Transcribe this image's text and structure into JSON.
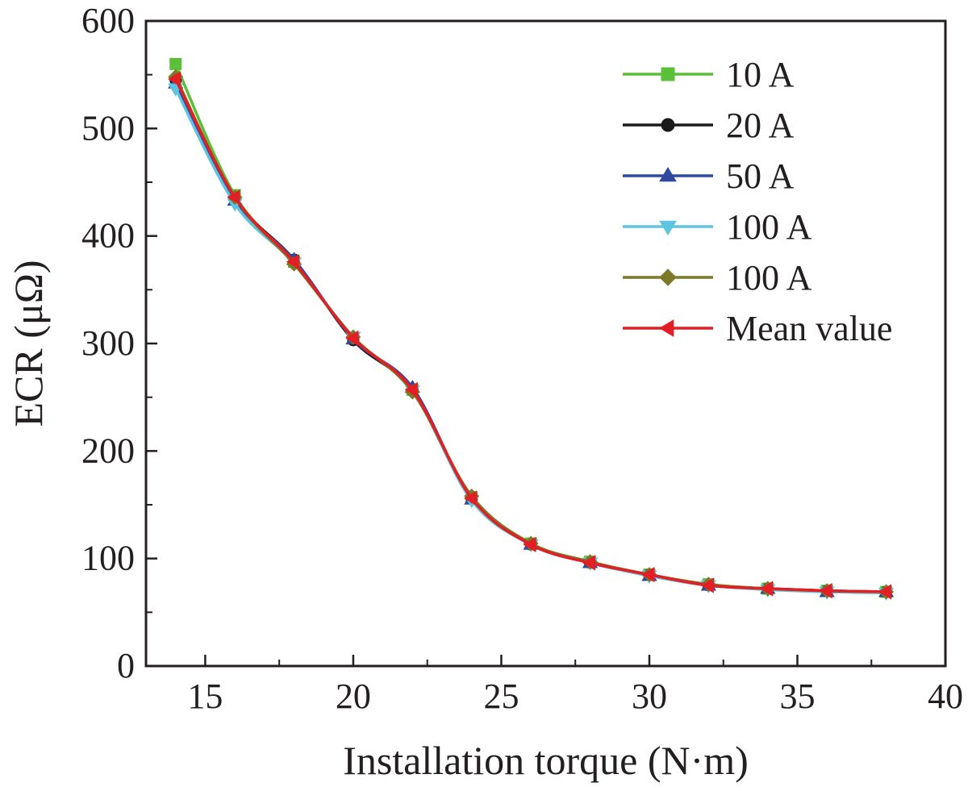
{
  "chart_data": {
    "type": "line",
    "xlabel": "Installation torque (N·m)",
    "ylabel": "ECR (μΩ)",
    "xlim": [
      13,
      40
    ],
    "ylim": [
      0,
      600
    ],
    "x_ticks": [
      15,
      20,
      25,
      30,
      35,
      40
    ],
    "y_ticks": [
      0,
      100,
      200,
      300,
      400,
      500,
      600
    ],
    "x_tick_labels": [
      "15",
      "20",
      "25",
      "30",
      "35",
      "40"
    ],
    "y_tick_labels": [
      "0",
      "100",
      "200",
      "300",
      "400",
      "500",
      "600"
    ],
    "grid": false,
    "legend_position": "top-right",
    "x": [
      14,
      16,
      18,
      20,
      22,
      24,
      26,
      28,
      30,
      32,
      34,
      36,
      38
    ],
    "series": [
      {
        "name": "10 A",
        "color": "#5cbf3a",
        "marker": "square",
        "values": [
          560,
          438,
          376,
          305,
          257,
          157,
          114,
          97,
          85,
          76,
          72,
          70,
          69
        ]
      },
      {
        "name": "20 A",
        "color": "#1a1a1a",
        "marker": "circle",
        "values": [
          545,
          435,
          378,
          303,
          257,
          156,
          113,
          96,
          85,
          75,
          72,
          70,
          69
        ]
      },
      {
        "name": "50 A",
        "color": "#2e4a9e",
        "marker": "triangle-up",
        "values": [
          542,
          433,
          378,
          304,
          259,
          155,
          113,
          96,
          84,
          75,
          72,
          69,
          69
        ]
      },
      {
        "name": "100 A",
        "color": "#5fc4e0",
        "marker": "triangle-down",
        "values": [
          537,
          430,
          375,
          306,
          256,
          154,
          113,
          96,
          84,
          75,
          71,
          69,
          68
        ]
      },
      {
        "name": "100 A",
        "color": "#7b7a2a",
        "marker": "diamond",
        "values": [
          548,
          436,
          374,
          306,
          255,
          158,
          114,
          97,
          85,
          76,
          72,
          70,
          69
        ]
      },
      {
        "name": "Mean value",
        "color": "#e31e24",
        "marker": "triangle-left",
        "values": [
          546,
          436,
          376,
          305,
          257,
          156,
          113,
          96,
          85,
          75,
          72,
          70,
          69
        ]
      }
    ]
  }
}
